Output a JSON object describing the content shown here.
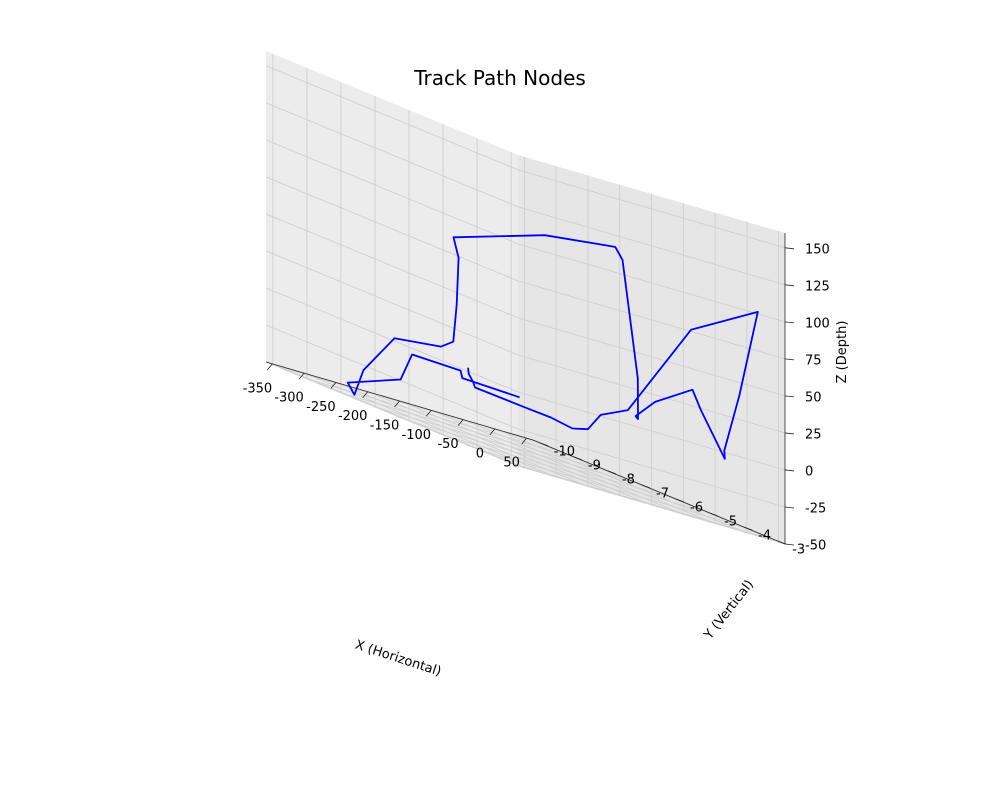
{
  "chart_data": {
    "type": "line",
    "projection": "3d",
    "title": "Track Path Nodes",
    "xlabel": "X (Horizontal)",
    "ylabel": "Y (Vertical)",
    "zlabel": "Z (Depth)",
    "xlim": [
      -360,
      60
    ],
    "ylim": [
      -10.2,
      -2.8
    ],
    "zlim": [
      -50,
      160
    ],
    "xticks": [
      -350,
      -300,
      -250,
      -200,
      -150,
      -100,
      -50,
      0,
      50
    ],
    "yticks": [
      -10,
      -9,
      -8,
      -7,
      -6,
      -5,
      -4,
      -3
    ],
    "zticks": [
      -50,
      -25,
      0,
      25,
      50,
      75,
      100,
      125,
      150
    ],
    "grid": true,
    "series": [
      {
        "color": "#0000ff",
        "points": [
          [
            -235,
            -6.6,
            -4
          ],
          [
            -234,
            -6.6,
            -8
          ],
          [
            -238,
            -6.4,
            -12
          ],
          [
            -224,
            -6.6,
            -16
          ],
          [
            -176,
            -6.0,
            -18
          ],
          [
            -110,
            -6.5,
            -21
          ],
          [
            -60,
            -6.8,
            -25
          ],
          [
            -25,
            -7.0,
            -23
          ],
          [
            -21,
            -6.7,
            -10
          ],
          [
            -5,
            -6.2,
            0
          ],
          [
            30,
            -5.0,
            70
          ],
          [
            44,
            -3.3,
            100
          ],
          [
            15,
            -3.3,
            40
          ],
          [
            -14,
            -3.2,
            0
          ],
          [
            -24,
            -3.0,
            -5
          ],
          [
            -35,
            -3.5,
            22
          ],
          [
            -48,
            -3.5,
            34
          ],
          [
            -80,
            -4.0,
            17
          ],
          [
            -100,
            -4.2,
            3
          ],
          [
            -107,
            -4.0,
            2
          ],
          [
            -118,
            -3.8,
            30
          ],
          [
            -132,
            -3.8,
            75
          ],
          [
            -142,
            -3.8,
            107
          ],
          [
            -148,
            -3.9,
            114
          ],
          [
            -157,
            -4.0,
            113
          ],
          [
            -200,
            -5.0,
            105
          ],
          [
            -274,
            -6.3,
            82
          ],
          [
            -282,
            -6.0,
            70
          ],
          [
            -285,
            -6.0,
            38
          ],
          [
            -285,
            -6.1,
            12
          ],
          [
            -299,
            -6.2,
            6
          ],
          [
            -324,
            -7.1,
            0
          ],
          [
            -330,
            -7.9,
            -30
          ],
          [
            -312,
            -8.5,
            -50
          ],
          [
            -285,
            -9.2,
            -45
          ],
          [
            -250,
            -8.3,
            -30
          ],
          [
            -248,
            -8.0,
            -10
          ],
          [
            -236,
            -6.8,
            -8
          ],
          [
            -228,
            -6.9,
            -13
          ],
          [
            -170,
            -6.3,
            -13
          ]
        ]
      }
    ]
  }
}
